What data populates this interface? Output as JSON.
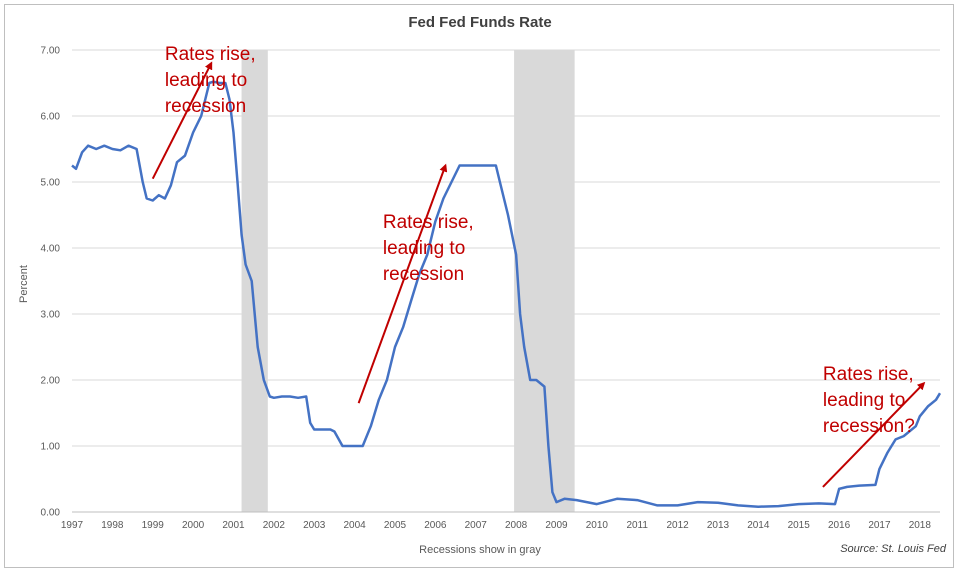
{
  "chart_data": {
    "type": "line",
    "title": "Fed Fed Funds Rate",
    "xlabel": "Recessions show in gray",
    "ylabel": "Percent",
    "source": "Source: St. Louis Fed",
    "xlim": [
      1997,
      2018.5
    ],
    "ylim": [
      0,
      7
    ],
    "yticks": [
      "0.00",
      "1.00",
      "2.00",
      "3.00",
      "4.00",
      "5.00",
      "6.00",
      "7.00"
    ],
    "xticks": [
      "1997",
      "1998",
      "1999",
      "2000",
      "2001",
      "2002",
      "2003",
      "2004",
      "2005",
      "2006",
      "2007",
      "2008",
      "2009",
      "2010",
      "2011",
      "2012",
      "2013",
      "2014",
      "2015",
      "2016",
      "2017",
      "2018"
    ],
    "grid": true,
    "line_color": "#4472c4",
    "recession_color": "#d9d9d9",
    "recessions": [
      [
        2001.2,
        2001.85
      ],
      [
        2007.95,
        2009.45
      ]
    ],
    "series": [
      {
        "x": [
          1997.0,
          1997.1,
          1997.25,
          1997.4,
          1997.6,
          1997.8,
          1998.0,
          1998.2,
          1998.4,
          1998.6,
          1998.75,
          1998.85,
          1999.0,
          1999.15,
          1999.3,
          1999.45,
          1999.6,
          1999.8,
          2000.0,
          2000.2,
          2000.4,
          2000.5,
          2000.65,
          2000.8,
          2000.9,
          2001.0,
          2001.1,
          2001.2,
          2001.3,
          2001.45,
          2001.6,
          2001.75,
          2001.9,
          2002.0,
          2002.2,
          2002.4,
          2002.6,
          2002.8,
          2002.9,
          2003.0,
          2003.2,
          2003.4,
          2003.5,
          2003.7,
          2004.0,
          2004.2,
          2004.4,
          2004.6,
          2004.8,
          2005.0,
          2005.2,
          2005.4,
          2005.6,
          2005.8,
          2006.0,
          2006.2,
          2006.4,
          2006.6,
          2006.8,
          2007.0,
          2007.2,
          2007.5,
          2007.6,
          2007.8,
          2008.0,
          2008.1,
          2008.2,
          2008.35,
          2008.5,
          2008.7,
          2008.8,
          2008.9,
          2009.0,
          2009.2,
          2009.5,
          2010.0,
          2010.5,
          2011.0,
          2011.5,
          2012.0,
          2012.5,
          2013.0,
          2013.5,
          2014.0,
          2014.5,
          2015.0,
          2015.5,
          2015.9,
          2016.0,
          2016.2,
          2016.5,
          2016.9,
          2017.0,
          2017.2,
          2017.4,
          2017.6,
          2017.9,
          2018.0,
          2018.2,
          2018.4,
          2018.5
        ],
        "values": [
          5.25,
          5.2,
          5.45,
          5.55,
          5.5,
          5.55,
          5.5,
          5.48,
          5.55,
          5.5,
          5.0,
          4.75,
          4.72,
          4.8,
          4.75,
          4.95,
          5.3,
          5.4,
          5.75,
          6.0,
          6.5,
          6.52,
          6.5,
          6.5,
          6.25,
          5.75,
          5.0,
          4.2,
          3.75,
          3.5,
          2.5,
          2.0,
          1.75,
          1.73,
          1.75,
          1.75,
          1.73,
          1.75,
          1.35,
          1.25,
          1.25,
          1.25,
          1.22,
          1.0,
          1.0,
          1.0,
          1.3,
          1.7,
          2.0,
          2.5,
          2.8,
          3.2,
          3.6,
          3.9,
          4.4,
          4.75,
          5.0,
          5.25,
          5.25,
          5.25,
          5.25,
          5.25,
          5.0,
          4.5,
          3.9,
          3.0,
          2.5,
          2.0,
          2.0,
          1.9,
          1.0,
          0.3,
          0.15,
          0.2,
          0.18,
          0.12,
          0.2,
          0.18,
          0.1,
          0.1,
          0.15,
          0.14,
          0.1,
          0.08,
          0.09,
          0.12,
          0.13,
          0.12,
          0.35,
          0.38,
          0.4,
          0.41,
          0.65,
          0.9,
          1.1,
          1.15,
          1.3,
          1.45,
          1.6,
          1.7,
          1.8
        ]
      }
    ],
    "annotations": [
      {
        "lines": [
          "Rates rise,",
          "leading to",
          "recession"
        ],
        "x": 1999.3,
        "y": 6.85,
        "arrow": [
          [
            1999.0,
            5.05
          ],
          [
            2000.45,
            6.8
          ]
        ]
      },
      {
        "lines": [
          "Rates rise,",
          "leading to",
          "recession"
        ],
        "x": 2004.7,
        "y": 4.3,
        "arrow": [
          [
            2004.1,
            1.65
          ],
          [
            2006.25,
            5.25
          ]
        ]
      },
      {
        "lines": [
          "Rates rise,",
          "leading to",
          "recession?"
        ],
        "x": 2015.6,
        "y": 2.0,
        "arrow": [
          [
            2015.6,
            0.38
          ],
          [
            2018.1,
            1.95
          ]
        ]
      }
    ]
  }
}
